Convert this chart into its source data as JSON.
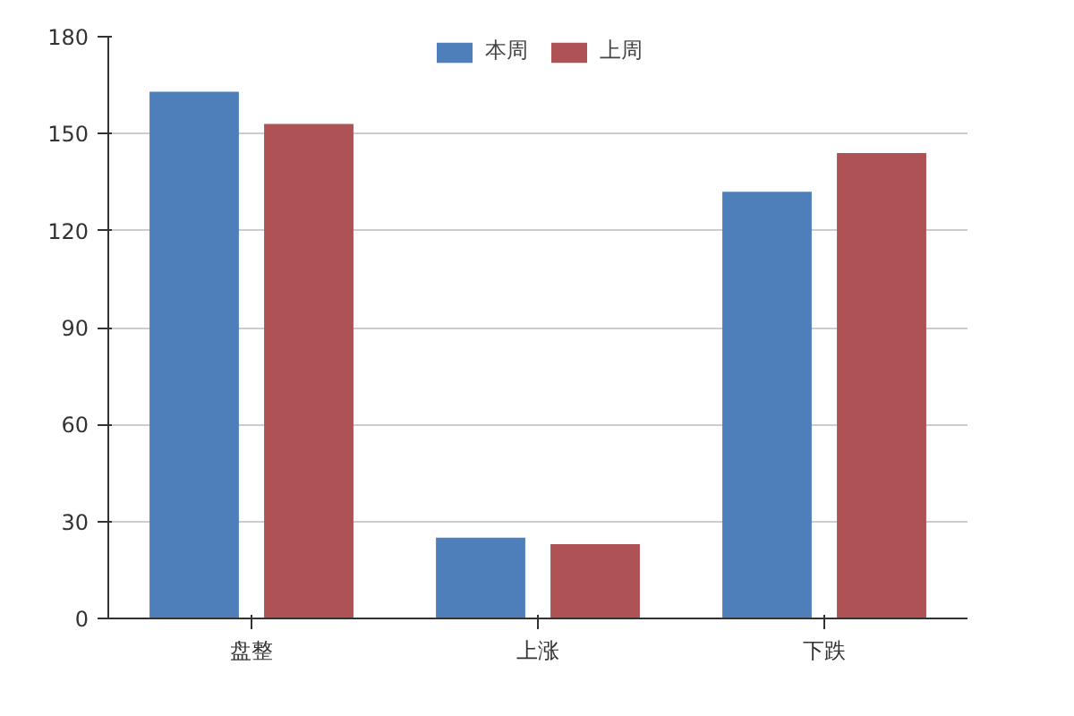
{
  "chart_data": {
    "type": "bar",
    "categories": [
      "盘整",
      "上涨",
      "下跌"
    ],
    "series": [
      {
        "name": "本周",
        "color": "#4e7fbb",
        "values": [
          163,
          25,
          132
        ]
      },
      {
        "name": "上周",
        "color": "#ae5256",
        "values": [
          153,
          23,
          144
        ]
      }
    ],
    "ylim": [
      0,
      180
    ],
    "yticks": [
      0,
      30,
      60,
      90,
      120,
      150,
      180
    ],
    "grid": "y",
    "legend": "top"
  }
}
